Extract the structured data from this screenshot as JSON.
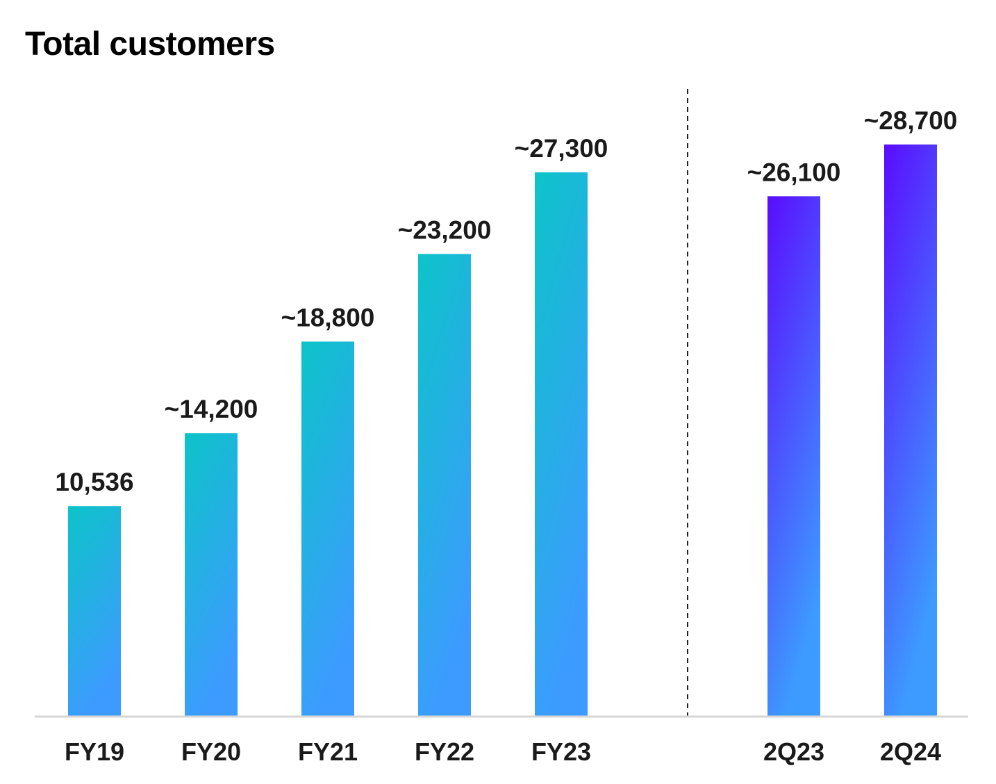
{
  "chart_data": {
    "type": "bar",
    "title": "Total customers",
    "categories": [
      "FY19",
      "FY20",
      "FY21",
      "FY22",
      "FY23",
      "2Q23",
      "2Q24"
    ],
    "values": [
      10536,
      14200,
      18800,
      23200,
      27300,
      26100,
      28700
    ],
    "data_labels": [
      "10,536",
      "~14,200",
      "~18,800",
      "~23,200",
      "~27,300",
      "~26,100",
      "~28,700"
    ],
    "groups": [
      {
        "categories": [
          "FY19",
          "FY20",
          "FY21",
          "FY22",
          "FY23"
        ],
        "gradient": [
          "#0cc4c8",
          "#3d9bff"
        ]
      },
      {
        "categories": [
          "2Q23",
          "2Q24"
        ],
        "gradient": [
          "#5a0cff",
          "#3d9bff"
        ]
      }
    ],
    "separator": "dashed line between FY23 and 2Q23",
    "ylim": [
      0,
      30000
    ],
    "grid": false,
    "legend": false,
    "xlabel": "",
    "ylabel": ""
  }
}
